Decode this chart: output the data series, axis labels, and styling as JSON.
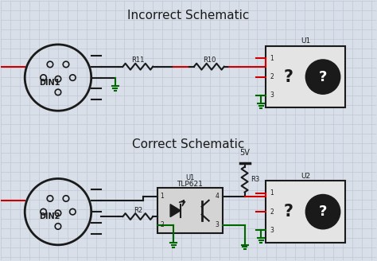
{
  "title_top": "Incorrect Schematic",
  "title_bottom": "Correct Schematic",
  "bg_color": "#d8dfe8",
  "grid_color": "#c0c8d4",
  "line_color_black": "#1a1a1a",
  "line_color_red": "#cc0000",
  "line_color_green": "#006600",
  "connector_label_top": "DIN1",
  "connector_label_bottom": "DIN2",
  "resistor_labels_top": [
    "R11",
    "R10"
  ],
  "resistor_label_bottom": "R2",
  "ic_label_top": "U1",
  "ic_label_bottom1": "U1",
  "ic_label_bottom2": "U2",
  "ic_name": "TLP621",
  "resistor_label_r3": "R3",
  "voltage_label": "5V",
  "question_mark": "?"
}
